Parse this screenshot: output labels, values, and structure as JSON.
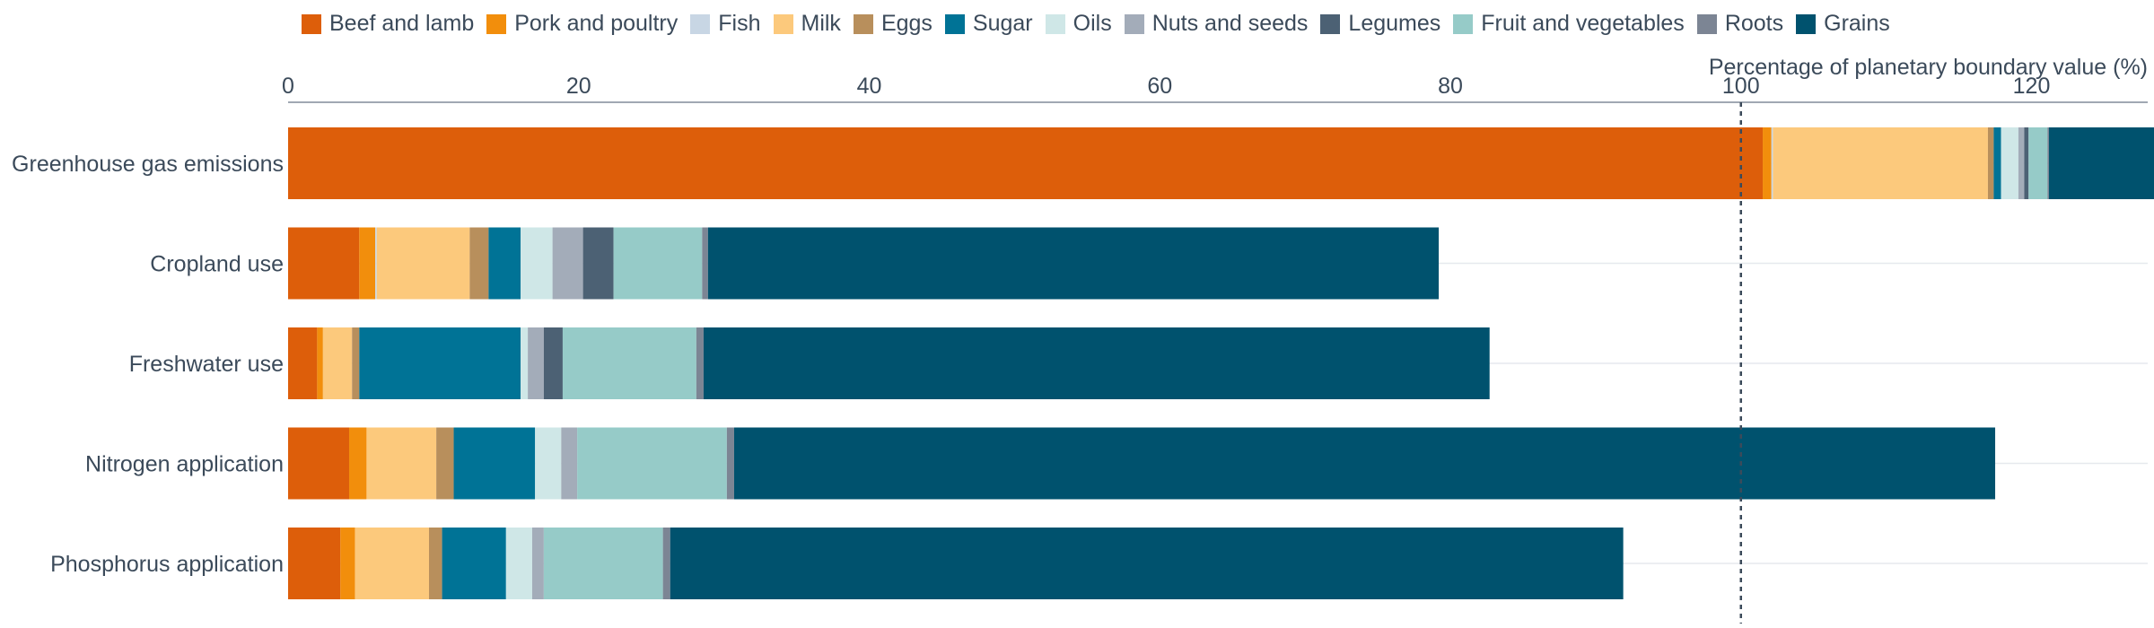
{
  "chart_data": {
    "type": "bar",
    "orientation": "horizontal",
    "stacked": true,
    "xlabel": "Percentage of planetary boundary value (%)",
    "xlim": [
      0,
      128
    ],
    "xticks": [
      0,
      20,
      40,
      60,
      80,
      100,
      120
    ],
    "reference_line": 100,
    "legend_position": "top",
    "categories": [
      "Greenhouse gas emissions",
      "Cropland use",
      "Freshwater use",
      "Nitrogen application",
      "Phosphorus application"
    ],
    "series": [
      {
        "name": "Beef and lamb",
        "color": "#dd5e0a",
        "values": [
          101.5,
          4.9,
          2.0,
          4.2,
          3.6
        ]
      },
      {
        "name": "Pork and poultry",
        "color": "#f28e0c",
        "values": [
          0.6,
          1.1,
          0.4,
          1.2,
          1.0
        ]
      },
      {
        "name": "Fish",
        "color": "#c8d6e4",
        "values": [
          0.1,
          0.1,
          0.0,
          0.0,
          0.0
        ]
      },
      {
        "name": "Milk",
        "color": "#fcc97c",
        "values": [
          14.8,
          6.4,
          2.0,
          4.8,
          5.1
        ]
      },
      {
        "name": "Eggs",
        "color": "#b88f5c",
        "values": [
          0.4,
          1.3,
          0.5,
          1.2,
          0.9
        ]
      },
      {
        "name": "Sugar",
        "color": "#007396",
        "values": [
          0.5,
          2.2,
          11.1,
          5.6,
          4.4
        ]
      },
      {
        "name": "Oils",
        "color": "#cfe7e7",
        "values": [
          1.2,
          2.2,
          0.5,
          1.8,
          1.8
        ]
      },
      {
        "name": "Nuts and seeds",
        "color": "#a3acb9",
        "values": [
          0.4,
          2.1,
          1.1,
          1.1,
          0.8
        ]
      },
      {
        "name": "Legumes",
        "color": "#4c6174",
        "values": [
          0.3,
          2.1,
          1.3,
          0.0,
          0.0
        ]
      },
      {
        "name": "Fruit and vegetables",
        "color": "#96cbc8",
        "values": [
          1.3,
          6.1,
          9.2,
          10.3,
          8.2
        ]
      },
      {
        "name": "Roots",
        "color": "#7c8594",
        "values": [
          0.1,
          0.4,
          0.5,
          0.5,
          0.5
        ]
      },
      {
        "name": "Grains",
        "color": "#00526e",
        "values": [
          7.5,
          50.3,
          54.1,
          86.8,
          65.6
        ]
      }
    ]
  }
}
